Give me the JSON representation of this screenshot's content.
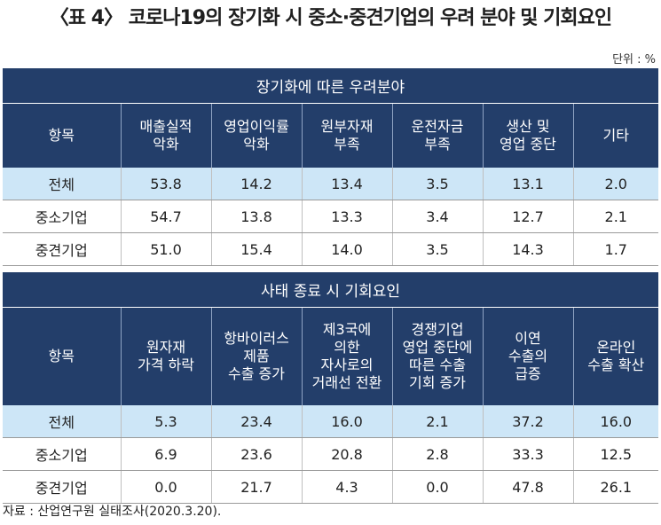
{
  "title": "〈표 4〉 코로나19의 장기화 시 중소·중견기업의 우려 분야 및 기회요인",
  "unit": "단위 : %",
  "table1": {
    "caption": "장기화에 따른 우려분야",
    "headers": [
      "항목",
      "매출실적 악화",
      "영업이익률 악화",
      "원부자재 부족",
      "운전자금 부족",
      "생산 및 영업 중단",
      "기타"
    ],
    "rows": [
      [
        "전체",
        "53.8",
        "14.2",
        "13.4",
        "3.5",
        "13.1",
        "2.0"
      ],
      [
        "중소기업",
        "54.7",
        "13.8",
        "13.3",
        "3.4",
        "12.7",
        "2.1"
      ],
      [
        "중견기업",
        "51.0",
        "15.4",
        "14.0",
        "3.5",
        "14.3",
        "1.7"
      ]
    ]
  },
  "table2": {
    "caption": "사태 종료 시 기회요인",
    "headers": [
      "항목",
      "원자재 가격 하락",
      "항바이러스 제품 수출 증가",
      "제3국에 의한 자사로의 거래선 전환",
      "경쟁기업 영업 중단에 따른 수출 기회 증가",
      "이연 수출의 급증",
      "온라인 수출 확산"
    ],
    "rows": [
      [
        "전체",
        "5.3",
        "23.4",
        "16.0",
        "2.1",
        "37.2",
        "16.0"
      ],
      [
        "중소기업",
        "6.9",
        "23.6",
        "20.8",
        "2.8",
        "33.3",
        "12.5"
      ],
      [
        "중견기업",
        "0.0",
        "21.7",
        "4.3",
        "0.0",
        "47.8",
        "26.1"
      ]
    ]
  },
  "source": "자료 : 산업연구원 실태조사(2020.3.20).",
  "colors": {
    "header_bg": "#233e6a",
    "highlight_row": "#cde6f7"
  }
}
